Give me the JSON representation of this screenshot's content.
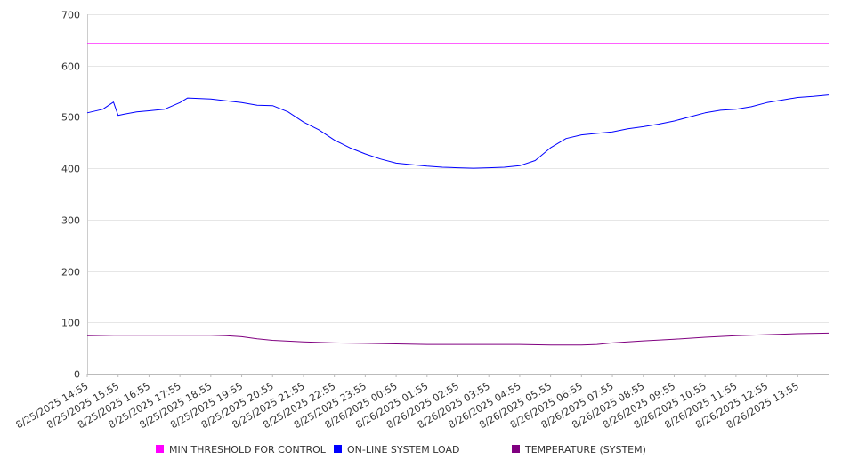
{
  "chart_data": {
    "type": "line",
    "title": "",
    "xlabel": "",
    "ylabel": "",
    "ylim": [
      0,
      700
    ],
    "yticks": [
      0,
      100,
      200,
      300,
      400,
      500,
      600,
      700
    ],
    "grid": true,
    "legend_placement": "bottom",
    "x_start": "8/25/2025 14:55",
    "x_end": "8/26/2025 14:55",
    "x_tick_labels": [
      "8/25/2025 14:55",
      "8/25/2025 15:55",
      "8/25/2025 16:55",
      "8/25/2025 17:55",
      "8/25/2025 18:55",
      "8/25/2025 19:55",
      "8/25/2025 20:55",
      "8/25/2025 21:55",
      "8/25/2025 22:55",
      "8/25/2025 23:55",
      "8/26/2025 00:55",
      "8/26/2025 01:55",
      "8/26/2025 02:55",
      "8/26/2025 03:55",
      "8/26/2025 04:55",
      "8/26/2025 05:55",
      "8/26/2025 06:55",
      "8/26/2025 07:55",
      "8/26/2025 08:55",
      "8/26/2025 09:55",
      "8/26/2025 10:55",
      "8/26/2025 11:55",
      "8/26/2025 12:55",
      "8/26/2025 13:55"
    ],
    "series": [
      {
        "name": "MIN THRESHOLD FOR CONTROL",
        "color": "#ff00ff",
        "x": [
          "8/25/2025 14:55",
          "8/26/2025 14:55"
        ],
        "values": [
          643,
          643
        ]
      },
      {
        "name": "ON-LINE SYSTEM LOAD",
        "color": "#0000ff",
        "x": [
          "8/25/2025 14:55",
          "8/25/2025 15:25",
          "8/25/2025 15:46",
          "8/25/2025 15:55",
          "8/25/2025 16:05",
          "8/25/2025 16:31",
          "8/25/2025 16:55",
          "8/25/2025 17:25",
          "8/25/2025 17:55",
          "8/25/2025 18:10",
          "8/25/2025 18:55",
          "8/25/2025 19:55",
          "8/25/2025 20:25",
          "8/25/2025 20:55",
          "8/25/2025 21:25",
          "8/25/2025 21:55",
          "8/25/2025 22:25",
          "8/25/2025 22:55",
          "8/25/2025 23:25",
          "8/25/2025 23:55",
          "8/26/2025 00:25",
          "8/26/2025 00:55",
          "8/26/2025 01:25",
          "8/26/2025 01:55",
          "8/26/2025 02:25",
          "8/26/2025 02:55",
          "8/26/2025 03:25",
          "8/26/2025 03:55",
          "8/26/2025 04:25",
          "8/26/2025 04:55",
          "8/26/2025 05:25",
          "8/26/2025 05:55",
          "8/26/2025 06:25",
          "8/26/2025 06:55",
          "8/26/2025 07:25",
          "8/26/2025 07:55",
          "8/26/2025 08:25",
          "8/26/2025 08:55",
          "8/26/2025 09:25",
          "8/26/2025 09:55",
          "8/26/2025 10:25",
          "8/26/2025 10:55",
          "8/26/2025 11:25",
          "8/26/2025 11:55",
          "8/26/2025 12:25",
          "8/26/2025 12:55",
          "8/26/2025 13:25",
          "8/26/2025 13:55",
          "8/26/2025 14:25",
          "8/26/2025 14:55"
        ],
        "values": [
          508,
          515,
          529,
          503,
          505,
          510,
          512,
          515,
          528,
          537,
          535,
          528,
          523,
          522,
          510,
          490,
          475,
          455,
          440,
          428,
          418,
          410,
          407,
          404,
          402,
          401,
          400,
          401,
          402,
          405,
          415,
          440,
          458,
          465,
          468,
          471,
          477,
          481,
          486,
          492,
          500,
          508,
          513,
          515,
          520,
          528,
          533,
          538,
          540,
          543
        ]
      },
      {
        "name": "TEMPERATURE (SYSTEM)",
        "color": "#800080",
        "x": [
          "8/25/2025 14:55",
          "8/25/2025 15:55",
          "8/25/2025 16:55",
          "8/25/2025 17:55",
          "8/25/2025 18:55",
          "8/25/2025 19:25",
          "8/25/2025 19:55",
          "8/25/2025 20:25",
          "8/25/2025 20:55",
          "8/25/2025 21:55",
          "8/25/2025 22:55",
          "8/25/2025 23:55",
          "8/26/2025 00:55",
          "8/26/2025 01:55",
          "8/26/2025 02:55",
          "8/26/2025 03:55",
          "8/26/2025 04:55",
          "8/26/2025 05:55",
          "8/26/2025 06:55",
          "8/26/2025 07:25",
          "8/26/2025 07:55",
          "8/26/2025 08:55",
          "8/26/2025 09:55",
          "8/26/2025 10:55",
          "8/26/2025 11:55",
          "8/26/2025 12:55",
          "8/26/2025 13:55",
          "8/26/2025 14:55"
        ],
        "values": [
          74,
          75,
          75,
          75,
          75,
          74,
          72,
          68,
          65,
          62,
          60,
          59,
          58,
          57,
          57,
          57,
          57,
          56,
          56,
          57,
          60,
          64,
          67,
          71,
          74,
          76,
          78,
          79
        ]
      }
    ]
  }
}
